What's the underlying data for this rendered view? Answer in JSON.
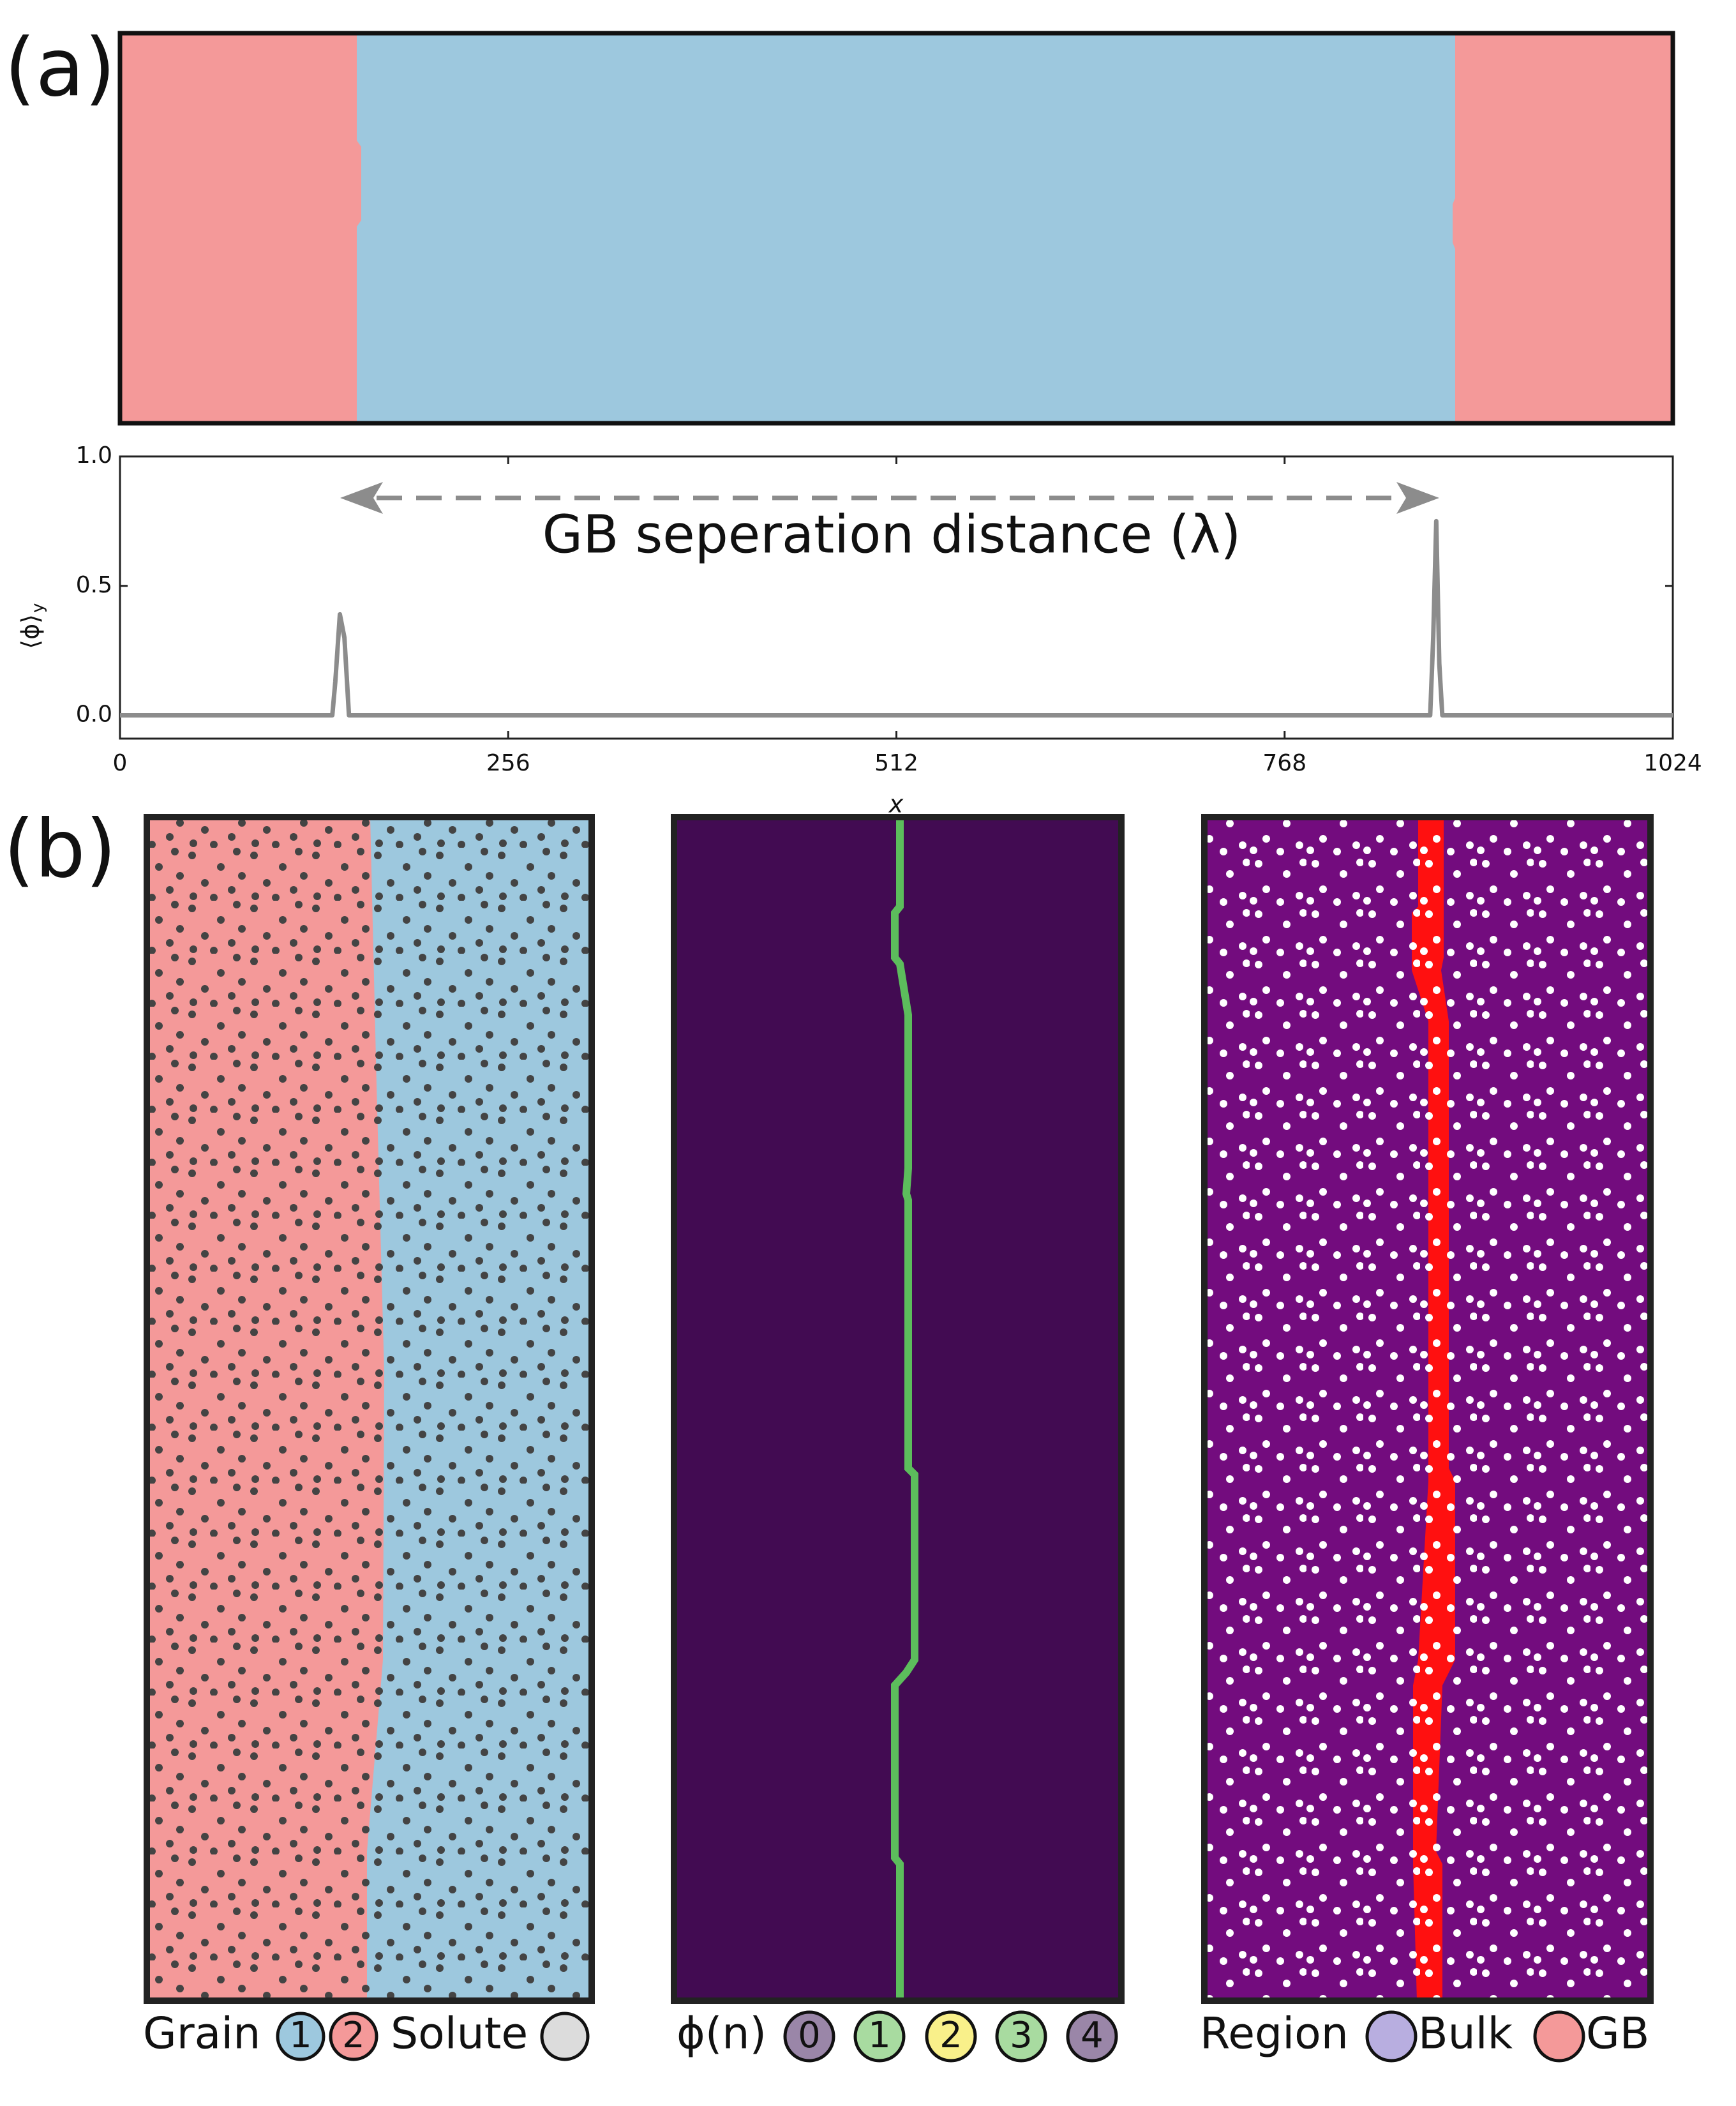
{
  "panel_labels": [
    "(a)",
    "(b)"
  ],
  "chart_data": {
    "type": "line",
    "annotation": "GB seperation distance (λ)",
    "x_label": "x",
    "y_label": "⟨ϕ⟩",
    "y_label_sub": "y",
    "x": [
      0,
      140,
      142,
      145,
      148,
      151,
      864,
      866,
      868,
      870,
      872,
      1024
    ],
    "values": [
      0,
      0,
      0.13,
      0.39,
      0.3,
      0,
      0,
      0.3,
      0.75,
      0.2,
      0,
      0
    ],
    "color": "#8c8c8c",
    "xlim": [
      0,
      1024
    ],
    "xticks": [
      0,
      256,
      512,
      768,
      1024
    ],
    "ylim": [
      -0.09,
      1.0
    ],
    "yticks": [
      {
        "value": 0,
        "label": "0.0"
      },
      {
        "value": 0.5,
        "label": "0.5"
      },
      {
        "value": 1.0,
        "label": "1.0"
      }
    ]
  },
  "legends": [
    [
      "Grain",
      "1",
      "2",
      "Solute"
    ],
    [
      "ϕ(n)",
      "0",
      "1",
      "2",
      "3",
      "4"
    ],
    [
      "Region",
      "Bulk",
      "GB"
    ]
  ]
}
